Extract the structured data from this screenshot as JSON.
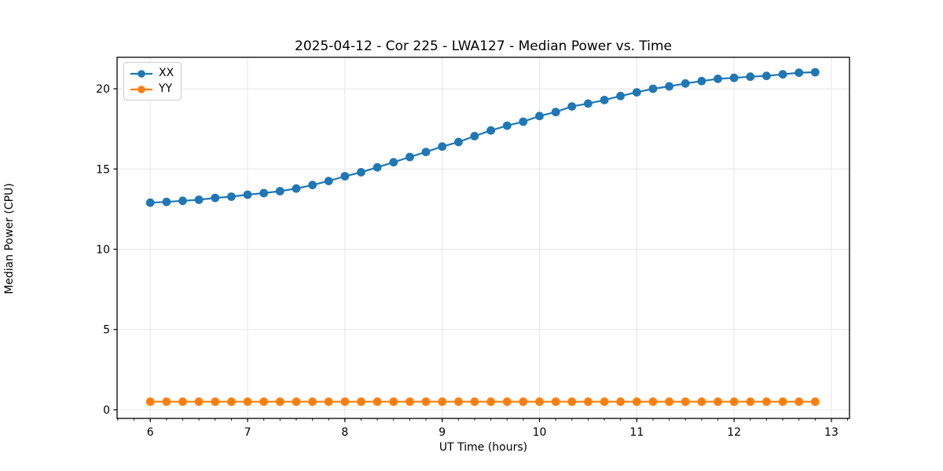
{
  "figure": {
    "background": "#ffffff"
  },
  "chart_data": {
    "type": "line",
    "title": "2025-04-12 - Cor 225 - LWA127 - Median Power vs. Time",
    "xlabel": "UT Time (hours)",
    "ylabel": "Median Power (CPU)",
    "xlim": [
      5.659,
      13.186
    ],
    "ylim": [
      -0.54,
      21.96
    ],
    "x_ticks": [
      6,
      7,
      8,
      9,
      10,
      11,
      12,
      13
    ],
    "y_ticks": [
      0,
      5,
      10,
      15,
      20
    ],
    "x_minor_tick_step": 0.166667,
    "grid": true,
    "grid_color": "#e6e6e6",
    "axis_color": "#000000",
    "legend_position": "upper-left",
    "x": [
      6.0,
      6.167,
      6.333,
      6.5,
      6.667,
      6.833,
      7.0,
      7.167,
      7.333,
      7.5,
      7.667,
      7.833,
      8.0,
      8.167,
      8.333,
      8.5,
      8.667,
      8.833,
      9.0,
      9.167,
      9.333,
      9.5,
      9.667,
      9.833,
      10.0,
      10.167,
      10.333,
      10.5,
      10.667,
      10.833,
      11.0,
      11.167,
      11.333,
      11.5,
      11.667,
      11.833,
      12.0,
      12.167,
      12.333,
      12.5,
      12.667,
      12.833
    ],
    "series": [
      {
        "name": "XX",
        "color": "#1f77b4",
        "marker": "circle",
        "values": [
          12.9,
          12.95,
          13.02,
          13.08,
          13.2,
          13.28,
          13.4,
          13.5,
          13.62,
          13.78,
          14.0,
          14.25,
          14.55,
          14.8,
          15.1,
          15.42,
          15.75,
          16.06,
          16.4,
          16.68,
          17.05,
          17.4,
          17.7,
          17.95,
          18.3,
          18.55,
          18.9,
          19.08,
          19.3,
          19.55,
          19.78,
          20.0,
          20.15,
          20.33,
          20.48,
          20.62,
          20.68,
          20.75,
          20.8,
          20.9,
          21.0,
          21.03
        ]
      },
      {
        "name": "YY",
        "color": "#ff7f0e",
        "marker": "circle",
        "values": [
          0.5,
          0.5,
          0.5,
          0.5,
          0.5,
          0.5,
          0.5,
          0.5,
          0.5,
          0.5,
          0.5,
          0.5,
          0.5,
          0.5,
          0.5,
          0.5,
          0.5,
          0.5,
          0.5,
          0.5,
          0.5,
          0.5,
          0.5,
          0.5,
          0.5,
          0.5,
          0.5,
          0.5,
          0.5,
          0.5,
          0.5,
          0.5,
          0.5,
          0.5,
          0.5,
          0.5,
          0.5,
          0.5,
          0.5,
          0.5,
          0.5,
          0.5
        ]
      }
    ]
  }
}
